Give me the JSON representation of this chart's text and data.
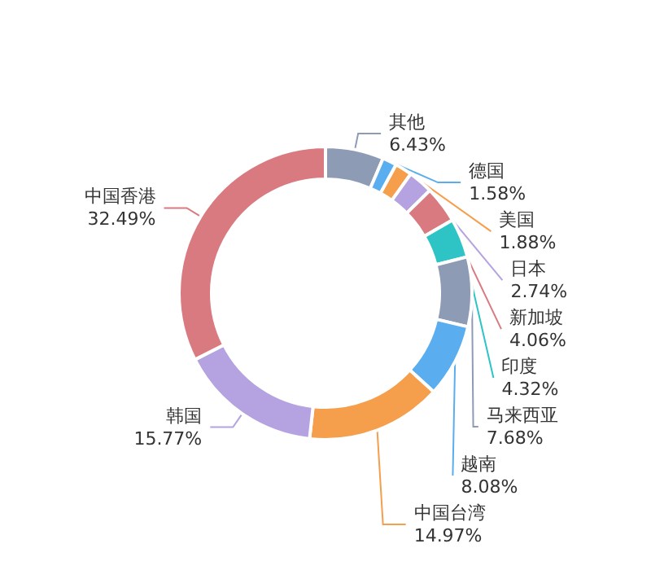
{
  "chart_data": {
    "type": "donut",
    "categories": [
      "其他",
      "德国",
      "美国",
      "日本",
      "新加坡",
      "印度",
      "马来西亚",
      "越南",
      "中国台湾",
      "韩国",
      "中国香港"
    ],
    "values": [
      6.43,
      1.58,
      1.88,
      2.74,
      4.06,
      4.32,
      7.68,
      8.08,
      14.97,
      15.77,
      32.49
    ],
    "value_labels": [
      "6.43%",
      "1.58%",
      "1.88%",
      "2.74%",
      "4.06%",
      "4.32%",
      "7.68%",
      "8.08%",
      "14.97%",
      "15.77%",
      "32.49%"
    ],
    "colors": [
      "#8e9bb5",
      "#5aaef0",
      "#f59e4c",
      "#b5a2e0",
      "#d97a80",
      "#2ec4c6",
      "#8e9bb5",
      "#5aaef0",
      "#f59e4c",
      "#b5a2e0",
      "#d97a80"
    ],
    "legend": false
  }
}
